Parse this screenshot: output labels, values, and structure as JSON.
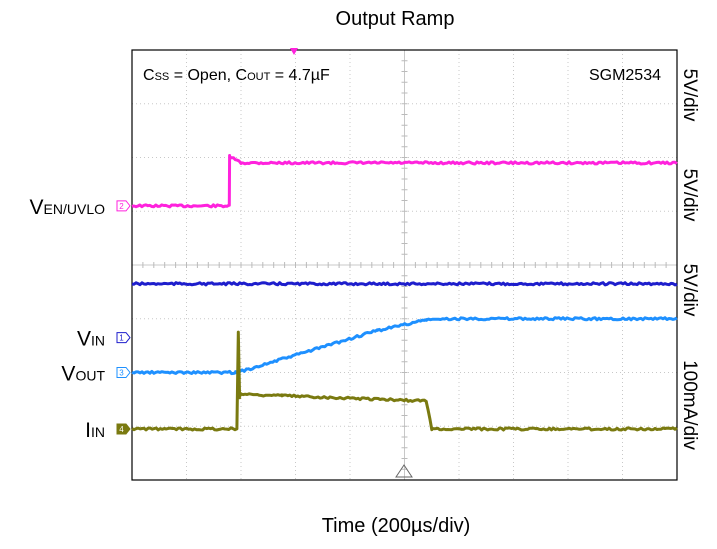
{
  "chart_data": {
    "type": "line",
    "title": "Output Ramp",
    "xlabel": "Time (200µs/div)",
    "annotation": {
      "css_prefix": "C",
      "css_sub": "SS",
      "css_value": " = Open, ",
      "cout_prefix": "C",
      "cout_sub": "OUT",
      "cout_value": " = 4.7µF"
    },
    "device": "SGM2534",
    "x_divisions": 10,
    "y_divisions": 8,
    "xlim": [
      0,
      2000
    ],
    "grid": true,
    "channels": [
      {
        "id": "ch2",
        "marker": "2",
        "label_main": "V",
        "label_sub": "EN/UVLO",
        "scale": "5V/div",
        "color": "#ff22dd",
        "zero_div": 5.1,
        "points": [
          [
            0,
            0
          ],
          [
            357,
            0
          ],
          [
            358,
            4.6
          ],
          [
            400,
            4.0
          ],
          [
            2000,
            4.0
          ]
        ]
      },
      {
        "id": "ch1",
        "marker": "1",
        "label_main": "V",
        "label_sub": "IN",
        "scale": "5V/div",
        "color": "#1e1ecc",
        "zero_div": 2.65,
        "points": [
          [
            0,
            5.0
          ],
          [
            2000,
            5.0
          ]
        ]
      },
      {
        "id": "ch3",
        "marker": "3",
        "label_main": "V",
        "label_sub": "OUT",
        "scale": "5V/div",
        "color": "#1e90ff",
        "zero_div": 2.0,
        "points": [
          [
            0,
            0
          ],
          [
            380,
            0
          ],
          [
            420,
            0.25
          ],
          [
            900,
            3.9
          ],
          [
            1080,
            4.9
          ],
          [
            1200,
            5.0
          ],
          [
            2000,
            5.0
          ]
        ]
      },
      {
        "id": "ch4",
        "marker": "4",
        "label_main": "I",
        "label_sub": "IN",
        "scale": "100mA/div",
        "color": "#7a7a10",
        "zero_div": 0.95,
        "points": [
          [
            0,
            0
          ],
          [
            385,
            0
          ],
          [
            390,
            180
          ],
          [
            395,
            60
          ],
          [
            400,
            65
          ],
          [
            550,
            62
          ],
          [
            1080,
            52
          ],
          [
            1100,
            0
          ],
          [
            2000,
            0
          ]
        ]
      }
    ]
  }
}
